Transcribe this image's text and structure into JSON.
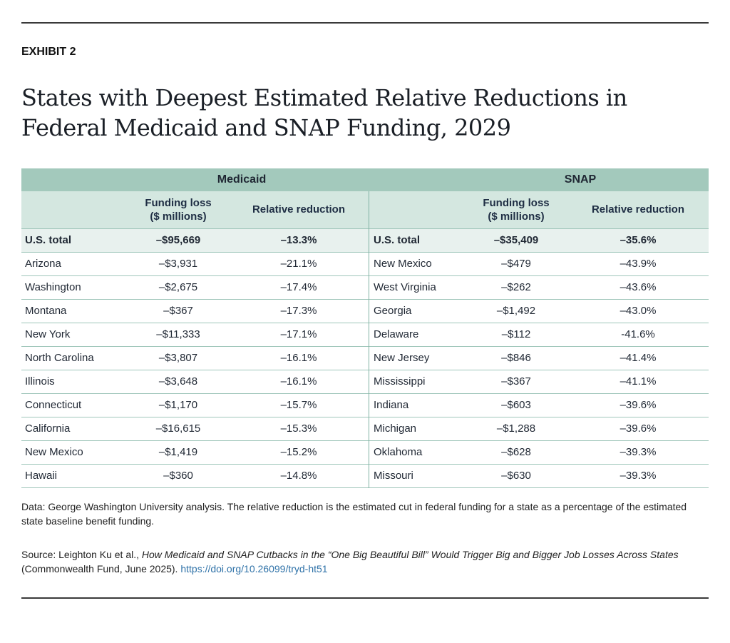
{
  "exhibit": "EXHIBIT 2",
  "title": "States with Deepest Estimated Relative Reductions in Federal Medicaid and SNAP Funding, 2029",
  "table": {
    "groups": [
      "Medicaid",
      "SNAP"
    ],
    "col_funding": "Funding loss\n($ millions)",
    "col_relative": "Relative reduction",
    "total": {
      "label": "U.S. total",
      "medicaid_loss": "–$95,669",
      "medicaid_rel": "–13.3%",
      "snap_label": "U.S. total",
      "snap_loss": "–$35,409",
      "snap_rel": "–35.6%"
    },
    "rows": [
      [
        "Arizona",
        "–$3,931",
        "–21.1%",
        "New Mexico",
        "–$479",
        "–43.9%"
      ],
      [
        "Washington",
        "–$2,675",
        "–17.4%",
        "West Virginia",
        "–$262",
        "–43.6%"
      ],
      [
        "Montana",
        "–$367",
        "–17.3%",
        "Georgia",
        "–$1,492",
        "–43.0%"
      ],
      [
        "New York",
        "–$11,333",
        "–17.1%",
        "Delaware",
        "–$112",
        "-41.6%"
      ],
      [
        "North Carolina",
        "–$3,807",
        "–16.1%",
        "New Jersey",
        "–$846",
        "–41.4%"
      ],
      [
        "Illinois",
        "–$3,648",
        "–16.1%",
        "Mississippi",
        "–$367",
        "–41.1%"
      ],
      [
        "Connecticut",
        "–$1,170",
        "–15.7%",
        "Indiana",
        "–$603",
        "–39.6%"
      ],
      [
        "California",
        "–$16,615",
        "–15.3%",
        "Michigan",
        "–$1,288",
        "–39.6%"
      ],
      [
        "New Mexico",
        "–$1,419",
        "–15.2%",
        "Oklahoma",
        "–$628",
        "–39.3%"
      ],
      [
        "Hawaii",
        "–$360",
        "–14.8%",
        "Missouri",
        "–$630",
        "–39.3%"
      ]
    ]
  },
  "notes": {
    "data": "Data: George Washington University analysis. The relative reduction is the estimated cut in federal funding for a state as a percentage of the estimated state baseline benefit funding.",
    "source_prefix": "Source: Leighton Ku et al., ",
    "source_title": "How Medicaid and SNAP Cutbacks in the “One Big Beautiful Bill” Would Trigger Big and Bigger Job Losses Across States",
    "source_suffix": " (Commonwealth Fund, June 2025). ",
    "source_link": "https://doi.org/10.26099/tryd-ht51"
  },
  "colors": {
    "header": "#a3c9bc",
    "subheader": "#d4e7e0",
    "total_row": "#e8f1ee",
    "link": "#2f72a8"
  }
}
